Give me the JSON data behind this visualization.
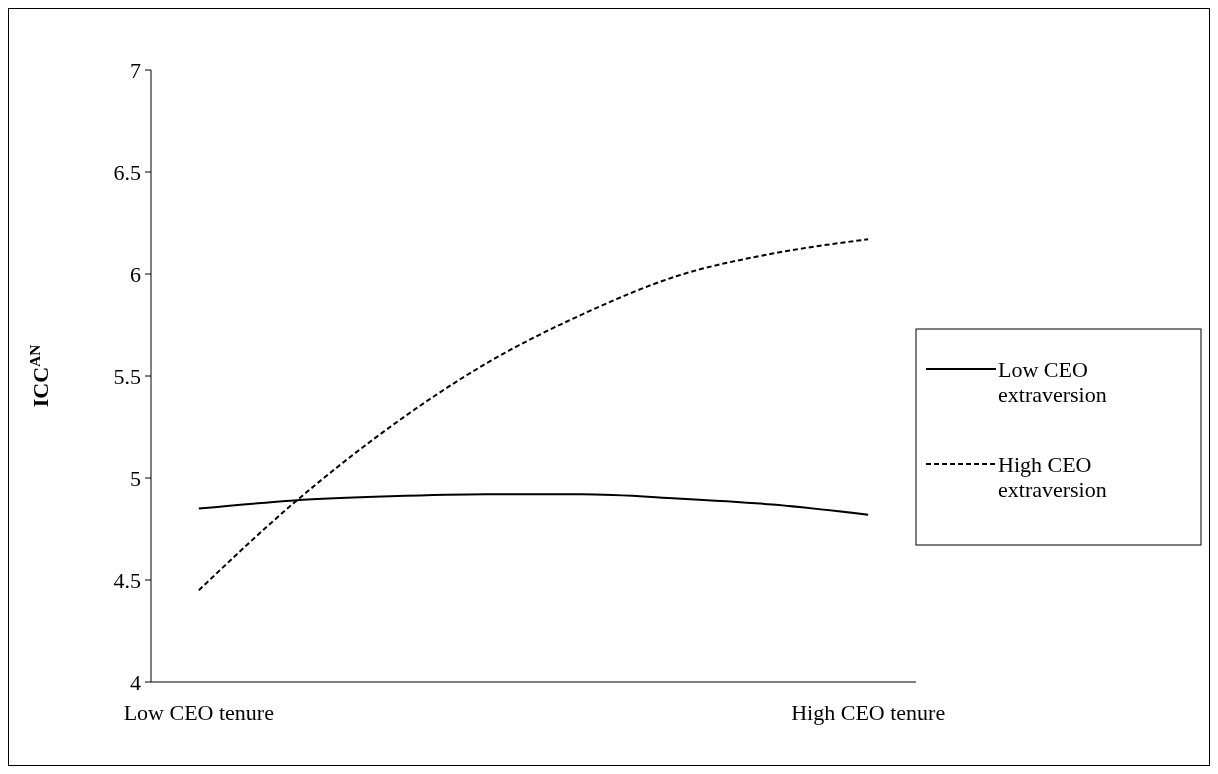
{
  "chart_data": {
    "type": "line",
    "ylabel": "ICC$^{AN}$",
    "categories": [
      "Low CEO tenure",
      null,
      null,
      null,
      null,
      null,
      null,
      "High CEO tenure"
    ],
    "series": [
      {
        "name": "Low CEO extraversion",
        "color": "#000000",
        "line_style": "solid",
        "values": [
          4.85,
          4.89,
          4.91,
          4.92,
          4.92,
          4.9,
          4.87,
          4.82
        ]
      },
      {
        "name": "High CEO extraversion",
        "color": "#000000",
        "line_style": "dashed",
        "values": [
          4.45,
          4.88,
          5.25,
          5.56,
          5.8,
          5.99,
          6.1,
          6.17
        ]
      }
    ],
    "ylim": [
      4,
      7
    ],
    "yticks": [
      4,
      4.5,
      5,
      5.5,
      6,
      6.5,
      7
    ],
    "grid": false,
    "legend": "right",
    "marker": "none"
  }
}
